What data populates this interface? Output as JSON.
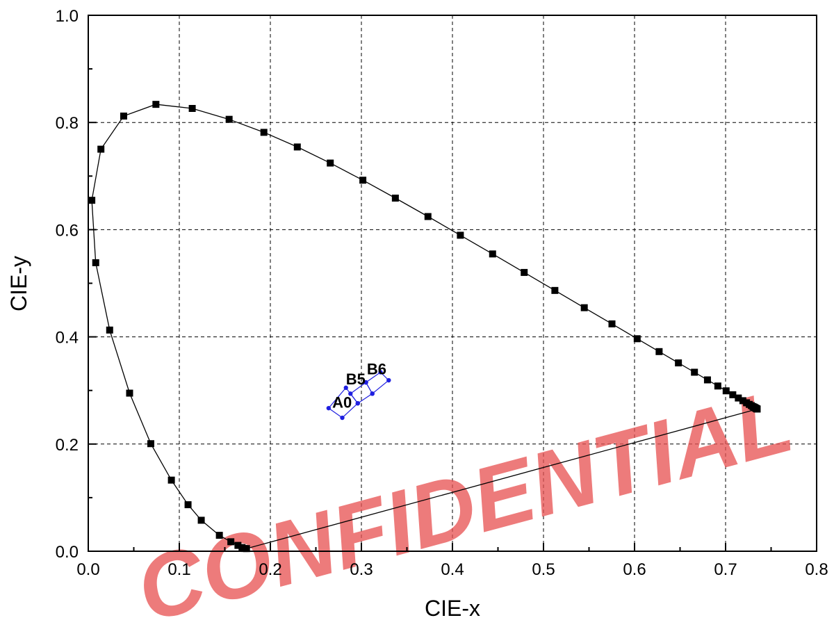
{
  "chart_data": {
    "type": "scatter",
    "xlabel": "CIE-x",
    "ylabel": "CIE-y",
    "xlim": [
      0.0,
      0.8
    ],
    "ylim": [
      0.0,
      1.0
    ],
    "x_ticks": [
      "0.0",
      "0.1",
      "0.2",
      "0.3",
      "0.4",
      "0.5",
      "0.6",
      "0.7",
      "0.8"
    ],
    "y_ticks": [
      "0.0",
      "0.2",
      "0.4",
      "0.6",
      "0.8",
      "1.0"
    ],
    "grid": true,
    "spectral_locus": {
      "color": "#000000",
      "marker": "square",
      "closed": true,
      "points": [
        [
          0.1738,
          0.0049
        ],
        [
          0.1714,
          0.0051
        ],
        [
          0.1689,
          0.0069
        ],
        [
          0.1644,
          0.0109
        ],
        [
          0.1566,
          0.0177
        ],
        [
          0.144,
          0.0297
        ],
        [
          0.1241,
          0.0578
        ],
        [
          0.1096,
          0.0868
        ],
        [
          0.0913,
          0.1327
        ],
        [
          0.0687,
          0.2007
        ],
        [
          0.0454,
          0.295
        ],
        [
          0.0235,
          0.4127
        ],
        [
          0.0082,
          0.5384
        ],
        [
          0.0039,
          0.6548
        ],
        [
          0.0139,
          0.7502
        ],
        [
          0.0389,
          0.812
        ],
        [
          0.0743,
          0.8338
        ],
        [
          0.1142,
          0.8262
        ],
        [
          0.1547,
          0.8059
        ],
        [
          0.1929,
          0.7816
        ],
        [
          0.2296,
          0.7543
        ],
        [
          0.2658,
          0.7243
        ],
        [
          0.3016,
          0.6923
        ],
        [
          0.3373,
          0.6589
        ],
        [
          0.3731,
          0.6245
        ],
        [
          0.4087,
          0.5896
        ],
        [
          0.4441,
          0.5547
        ],
        [
          0.4788,
          0.5202
        ],
        [
          0.5125,
          0.4866
        ],
        [
          0.5448,
          0.4544
        ],
        [
          0.5752,
          0.4242
        ],
        [
          0.6029,
          0.3965
        ],
        [
          0.627,
          0.3725
        ],
        [
          0.6482,
          0.3514
        ],
        [
          0.6658,
          0.334
        ],
        [
          0.6801,
          0.3197
        ],
        [
          0.6915,
          0.3083
        ],
        [
          0.7006,
          0.2993
        ],
        [
          0.7079,
          0.292
        ],
        [
          0.714,
          0.2859
        ],
        [
          0.719,
          0.2809
        ],
        [
          0.723,
          0.277
        ],
        [
          0.726,
          0.274
        ],
        [
          0.7283,
          0.2717
        ],
        [
          0.73,
          0.27
        ],
        [
          0.7311,
          0.2689
        ],
        [
          0.732,
          0.268
        ],
        [
          0.7327,
          0.2673
        ],
        [
          0.7334,
          0.2666
        ],
        [
          0.734,
          0.266
        ],
        [
          0.7344,
          0.2656
        ],
        [
          0.7347,
          0.2653
        ]
      ]
    },
    "regions": [
      {
        "color": "#1f1fe0",
        "points": [
          [
            0.264,
            0.267
          ],
          [
            0.279,
            0.249
          ],
          [
            0.296,
            0.276
          ],
          [
            0.283,
            0.305
          ]
        ]
      },
      {
        "color": "#1f1fe0",
        "points": [
          [
            0.288,
            0.294
          ],
          [
            0.296,
            0.276
          ],
          [
            0.312,
            0.294
          ],
          [
            0.305,
            0.315
          ]
        ]
      },
      {
        "color": "#1f1fe0",
        "points": [
          [
            0.305,
            0.315
          ],
          [
            0.312,
            0.294
          ],
          [
            0.33,
            0.319
          ],
          [
            0.321,
            0.334
          ]
        ]
      }
    ],
    "annotations": [
      {
        "text": "A0",
        "x": 0.268,
        "y": 0.268
      },
      {
        "text": "B5",
        "x": 0.283,
        "y": 0.311
      },
      {
        "text": "B6",
        "x": 0.306,
        "y": 0.33
      }
    ]
  },
  "watermark": "CONFIDENTIAL"
}
